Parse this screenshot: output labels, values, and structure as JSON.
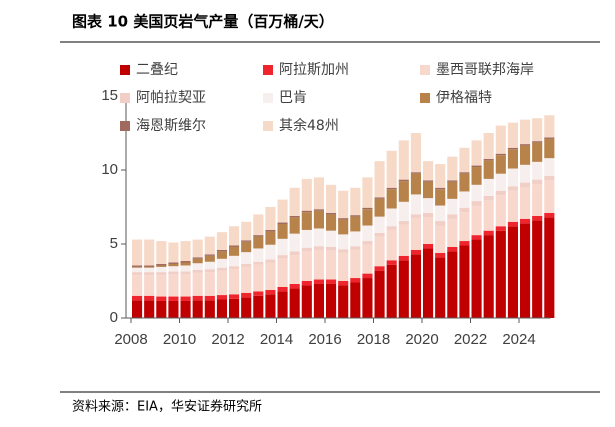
{
  "chart_data": {
    "type": "stacked-bar",
    "title": "图表 10 美国页岩气产量（百万桶/天）",
    "source": "资料来源：EIA，华安证券研究所",
    "x": [
      2008,
      2008.5,
      2009,
      2009.5,
      2010,
      2010.5,
      2011,
      2011.5,
      2012,
      2012.5,
      2013,
      2013.5,
      2014,
      2014.5,
      2015,
      2015.5,
      2016,
      2016.5,
      2017,
      2017.5,
      2018,
      2018.5,
      2019,
      2019.5,
      2020,
      2020.5,
      2021,
      2021.5,
      2022,
      2022.5,
      2023,
      2023.5,
      2024,
      2024.5,
      2025
    ],
    "xlim": [
      2008,
      2025.3
    ],
    "xticks": [
      2008,
      2010,
      2012,
      2014,
      2016,
      2018,
      2020,
      2022,
      2024
    ],
    "ylim": [
      0,
      15
    ],
    "yticks": [
      0,
      5,
      10,
      15
    ],
    "legend": "top-left",
    "series": [
      {
        "name": "二叠纪",
        "color": "#c00000",
        "values": [
          1.2,
          1.2,
          1.15,
          1.15,
          1.15,
          1.2,
          1.2,
          1.25,
          1.3,
          1.4,
          1.5,
          1.6,
          1.8,
          2.0,
          2.2,
          2.3,
          2.3,
          2.2,
          2.4,
          2.7,
          3.2,
          3.6,
          3.9,
          4.3,
          4.7,
          4.1,
          4.5,
          4.9,
          5.3,
          5.6,
          5.9,
          6.2,
          6.4,
          6.6,
          6.8
        ]
      },
      {
        "name": "阿拉斯加州",
        "color": "#f0242c",
        "values": [
          0.3,
          0.3,
          0.3,
          0.3,
          0.3,
          0.3,
          0.3,
          0.3,
          0.3,
          0.3,
          0.3,
          0.3,
          0.3,
          0.3,
          0.3,
          0.3,
          0.3,
          0.3,
          0.3,
          0.3,
          0.3,
          0.3,
          0.3,
          0.3,
          0.3,
          0.3,
          0.3,
          0.3,
          0.3,
          0.3,
          0.3,
          0.3,
          0.3,
          0.3,
          0.3
        ]
      },
      {
        "name": "墨西哥联邦海岸",
        "color": "#f8d8cc",
        "values": [
          1.4,
          1.4,
          1.45,
          1.5,
          1.5,
          1.55,
          1.6,
          1.65,
          1.7,
          1.75,
          1.8,
          1.85,
          1.9,
          1.95,
          2.0,
          2.0,
          1.95,
          1.9,
          1.9,
          1.95,
          2.0,
          2.05,
          2.1,
          2.15,
          1.8,
          1.85,
          1.9,
          1.95,
          2.0,
          2.05,
          2.1,
          2.1,
          2.15,
          2.15,
          2.2
        ]
      },
      {
        "name": "阿帕拉契亚",
        "color": "#f1cfc6",
        "values": [
          0.2,
          0.2,
          0.2,
          0.2,
          0.2,
          0.2,
          0.2,
          0.2,
          0.2,
          0.2,
          0.2,
          0.2,
          0.25,
          0.25,
          0.25,
          0.25,
          0.25,
          0.25,
          0.25,
          0.25,
          0.25,
          0.25,
          0.25,
          0.25,
          0.3,
          0.3,
          0.3,
          0.3,
          0.3,
          0.3,
          0.3,
          0.3,
          0.3,
          0.3,
          0.3
        ]
      },
      {
        "name": "巴肯",
        "color": "#f7eeee",
        "values": [
          0.3,
          0.3,
          0.35,
          0.35,
          0.4,
          0.45,
          0.5,
          0.6,
          0.7,
          0.8,
          0.9,
          1.0,
          1.1,
          1.2,
          1.2,
          1.2,
          1.1,
          1.0,
          1.0,
          1.05,
          1.1,
          1.2,
          1.3,
          1.35,
          1.0,
          1.05,
          1.05,
          1.1,
          1.1,
          1.15,
          1.15,
          1.2,
          1.2,
          1.2,
          1.2
        ]
      },
      {
        "name": "伊格福特",
        "color": "#b8834a",
        "values": [
          0.05,
          0.05,
          0.1,
          0.15,
          0.2,
          0.3,
          0.4,
          0.5,
          0.6,
          0.7,
          0.8,
          0.9,
          1.0,
          1.1,
          1.2,
          1.2,
          1.1,
          1.0,
          1.0,
          1.1,
          1.2,
          1.3,
          1.4,
          1.4,
          1.1,
          1.1,
          1.15,
          1.2,
          1.2,
          1.25,
          1.25,
          1.3,
          1.3,
          1.3,
          1.3
        ]
      },
      {
        "name": "海恩斯维尔",
        "color": "#a06a5c",
        "values": [
          0.1,
          0.1,
          0.1,
          0.1,
          0.1,
          0.1,
          0.1,
          0.1,
          0.1,
          0.1,
          0.1,
          0.1,
          0.1,
          0.1,
          0.1,
          0.1,
          0.1,
          0.1,
          0.1,
          0.1,
          0.1,
          0.1,
          0.1,
          0.1,
          0.1,
          0.1,
          0.1,
          0.1,
          0.1,
          0.1,
          0.1,
          0.1,
          0.1,
          0.1,
          0.1
        ]
      },
      {
        "name": "其余48州",
        "color": "#f7d9c8",
        "values": [
          1.75,
          1.75,
          1.55,
          1.35,
          1.35,
          1.2,
          1.2,
          1.2,
          1.3,
          1.25,
          1.4,
          1.55,
          1.55,
          1.9,
          2.15,
          2.15,
          1.9,
          1.85,
          1.85,
          2.05,
          2.45,
          2.5,
          2.65,
          2.65,
          1.3,
          1.6,
          1.6,
          1.65,
          1.7,
          1.75,
          1.9,
          1.7,
          1.65,
          1.55,
          1.5
        ]
      }
    ]
  }
}
